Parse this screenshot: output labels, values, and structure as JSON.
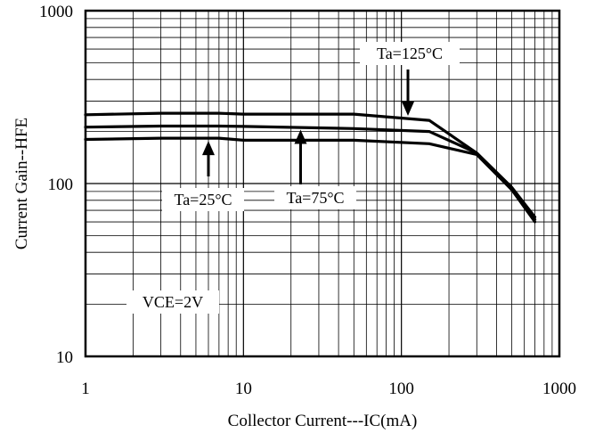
{
  "chart_data": {
    "type": "line",
    "title": "",
    "xlabel": "Collector Current---IC(mA)",
    "ylabel": "Current Gain--HFE",
    "x_scale": "log",
    "y_scale": "log",
    "xlim": [
      1,
      1000
    ],
    "ylim": [
      10,
      1000
    ],
    "grid": true,
    "x_ticks": [
      1,
      10,
      100,
      1000
    ],
    "x_tick_labels": [
      "1",
      "10",
      "100",
      "1000"
    ],
    "y_ticks": [
      10,
      100,
      1000
    ],
    "y_tick_labels": [
      "10",
      "100",
      "1000"
    ],
    "series": [
      {
        "name": "Ta=125°C",
        "x": [
          1,
          3,
          7,
          10,
          50,
          150,
          300,
          500,
          700
        ],
        "y": [
          250,
          255,
          255,
          252,
          252,
          232,
          150,
          95,
          64
        ]
      },
      {
        "name": "Ta=75°C",
        "x": [
          1,
          3,
          7,
          10,
          50,
          150,
          300,
          500,
          700
        ],
        "y": [
          212,
          215,
          215,
          214,
          208,
          200,
          150,
          92,
          62
        ]
      },
      {
        "name": "Ta=25°C",
        "x": [
          1,
          3,
          7,
          10,
          50,
          150,
          300,
          500,
          700
        ],
        "y": [
          180,
          183,
          183,
          178,
          178,
          170,
          147,
          92,
          60
        ]
      }
    ],
    "annotations": [
      {
        "text": "Ta=125°C",
        "series": "Ta=125°C",
        "arrow": "down",
        "arrow_x": 110,
        "arrow_tip_y": 235
      },
      {
        "text": "Ta=25°C",
        "series": "Ta=25°C",
        "arrow": "up",
        "arrow_x": 6,
        "arrow_tip_y": 185
      },
      {
        "text": "Ta=75°C",
        "series": "Ta=75°C",
        "arrow": "up",
        "arrow_x": 23,
        "arrow_tip_y": 215
      },
      {
        "text": "VCE=2V",
        "arrow": "none"
      }
    ]
  }
}
